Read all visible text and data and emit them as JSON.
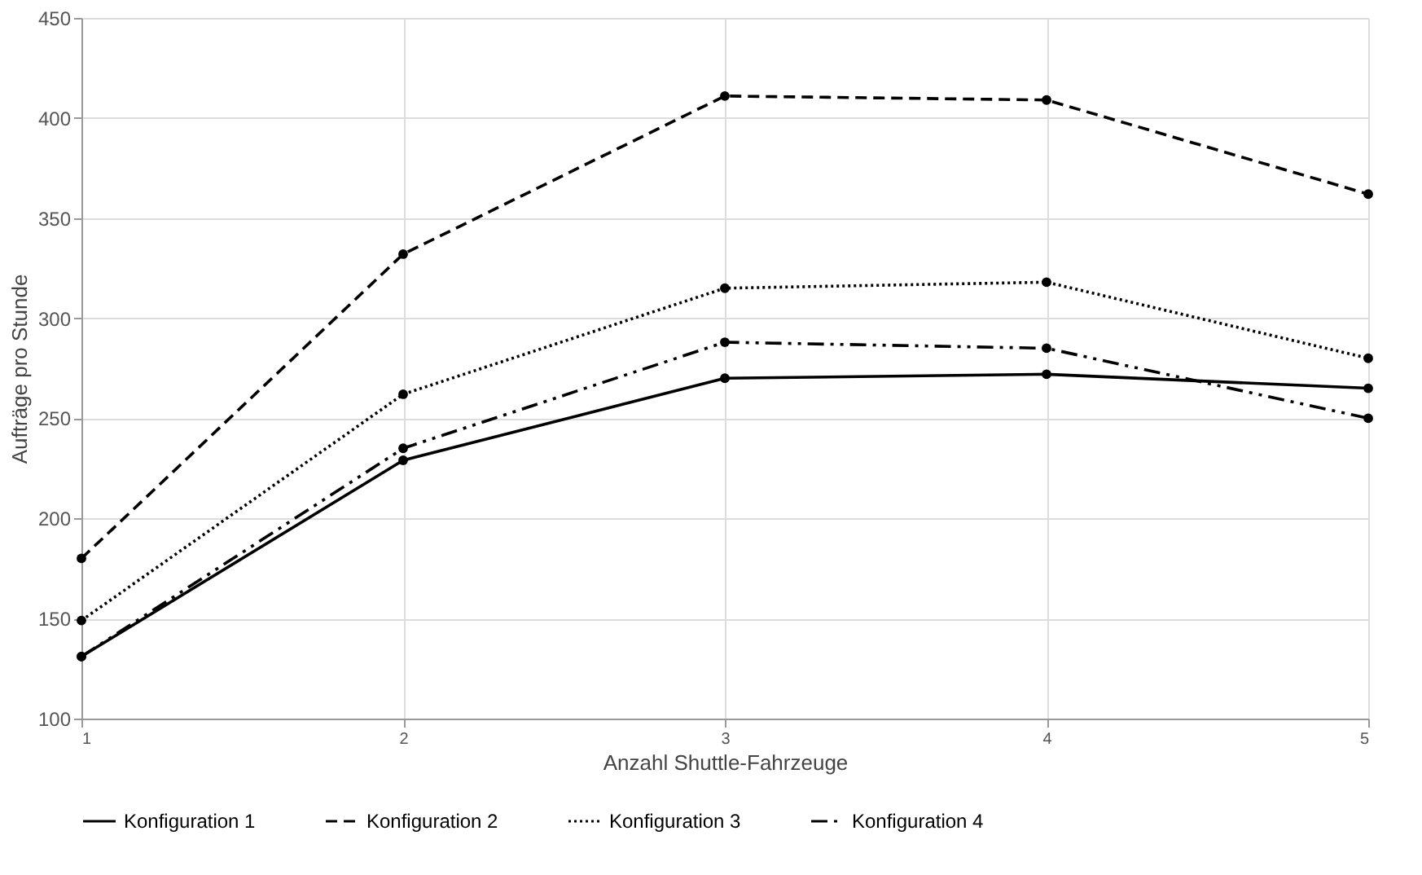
{
  "chart_data": {
    "type": "line",
    "xlabel": "Anzahl Shuttle-Fahrzeuge",
    "ylabel": "Aufträge pro Stunde",
    "x": [
      1,
      2,
      3,
      4,
      5
    ],
    "series": [
      {
        "name": "Konfiguration 1",
        "color": "#000000",
        "line_style": "solid",
        "values": [
          131,
          229,
          270,
          272,
          265
        ]
      },
      {
        "name": "Konfiguration 2",
        "color": "#000000",
        "line_style": "dashed",
        "values": [
          180,
          332,
          411,
          409,
          362
        ]
      },
      {
        "name": "Konfiguration 3",
        "color": "#000000",
        "line_style": "dotted",
        "values": [
          149,
          262,
          315,
          318,
          280
        ]
      },
      {
        "name": "Konfiguration 4",
        "color": "#000000",
        "line_style": "dashdot",
        "values": [
          131,
          235,
          288,
          285,
          250
        ]
      }
    ],
    "xlim": [
      1,
      5
    ],
    "xticks": [
      1,
      2,
      3,
      4,
      5
    ],
    "ylim": [
      100,
      450
    ],
    "yticks": [
      100,
      150,
      200,
      250,
      300,
      350,
      400,
      450
    ],
    "grid": true,
    "legend": "bottom",
    "marker": "circle"
  }
}
